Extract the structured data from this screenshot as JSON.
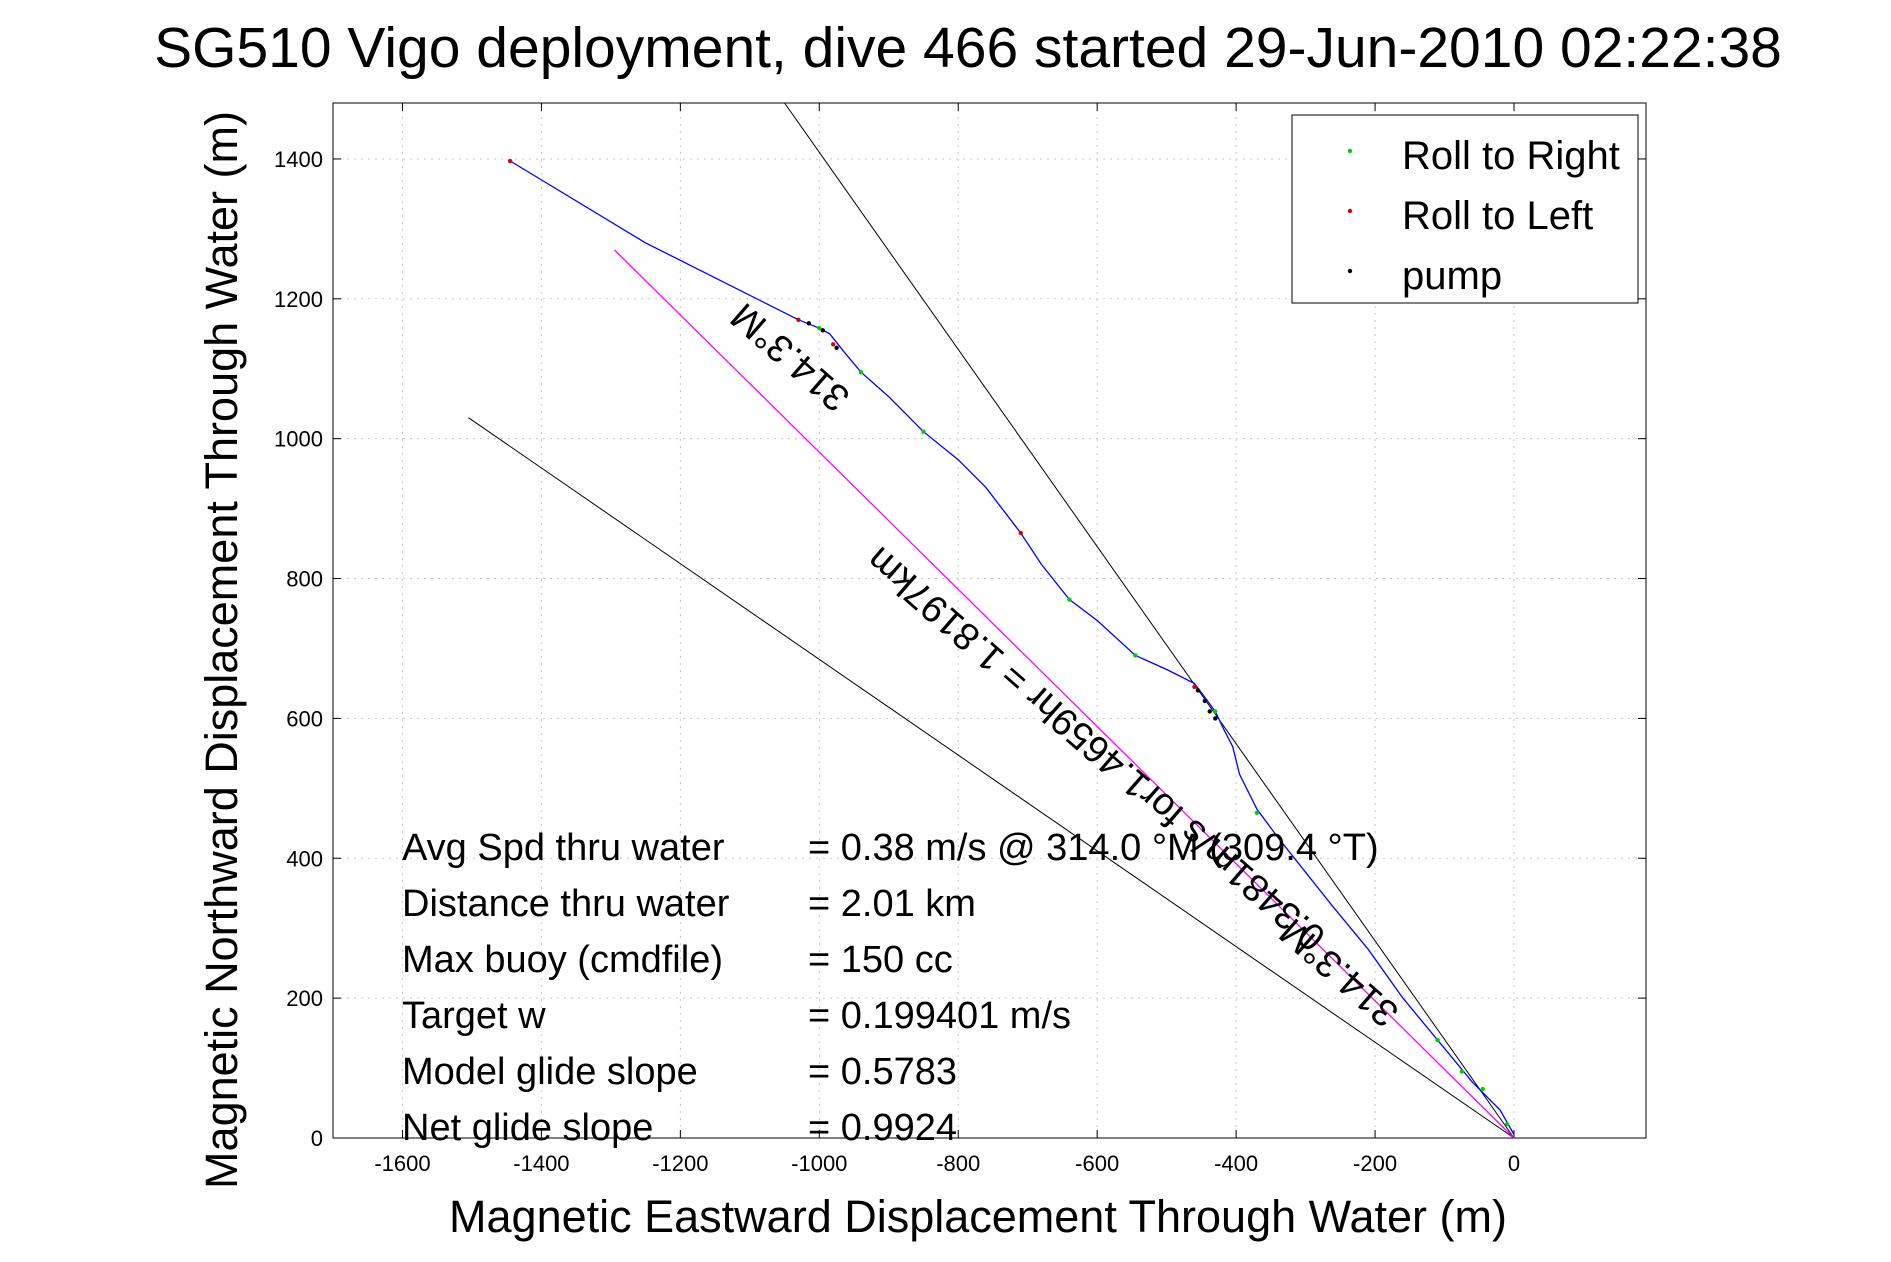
{
  "chart_data": {
    "type": "line",
    "title": "SG510 Vigo deployment, dive 466 started 29-Jun-2010 02:22:38",
    "xlabel": "Magnetic Eastward Displacement Through Water (m)",
    "ylabel": "Magnetic Northward Displacement Through Water (m)",
    "xlim": [
      -1700,
      190
    ],
    "ylim": [
      0,
      1480
    ],
    "xticks": [
      -1600,
      -1400,
      -1200,
      -1000,
      -800,
      -600,
      -400,
      -200,
      0
    ],
    "yticks": [
      0,
      200,
      400,
      600,
      800,
      1000,
      1200,
      1400
    ],
    "grid": true,
    "legend_position": "top-right",
    "legend": [
      {
        "label": "Roll to Right",
        "color": "#00cc00"
      },
      {
        "label": "Roll to Left",
        "color": "#dd0000"
      },
      {
        "label": "pump",
        "color": "#000000"
      }
    ],
    "series": [
      {
        "name": "track",
        "color": "#0000ff",
        "x": [
          0,
          -20,
          -60,
          -110,
          -160,
          -210,
          -260,
          -300,
          -340,
          -370,
          -395,
          -405,
          -418,
          -430,
          -445,
          -460,
          -500,
          -545,
          -600,
          -640,
          -680,
          -710,
          -760,
          -800,
          -850,
          -900,
          -940,
          -965,
          -985,
          -1000,
          -1030,
          -1250,
          -1445
        ],
        "y": [
          5,
          40,
          80,
          140,
          200,
          270,
          330,
          380,
          430,
          470,
          520,
          560,
          585,
          610,
          630,
          650,
          670,
          690,
          740,
          770,
          820,
          865,
          930,
          970,
          1010,
          1060,
          1095,
          1125,
          1150,
          1158,
          1170,
          1280,
          1397
        ]
      },
      {
        "name": "heading-line",
        "color": "#ff00ff",
        "x": [
          0,
          -1295
        ],
        "y": [
          0,
          1270
        ]
      }
    ],
    "reference_lines": [
      {
        "x": [
          0,
          -1050
        ],
        "y": [
          0,
          1480
        ]
      },
      {
        "x": [
          0,
          -1505
        ],
        "y": [
          0,
          1030
        ]
      }
    ],
    "markers": [
      {
        "type": "right",
        "x": -1000,
        "y": 1158
      },
      {
        "type": "right",
        "x": -940,
        "y": 1095
      },
      {
        "type": "right",
        "x": -850,
        "y": 1010
      },
      {
        "type": "right",
        "x": -640,
        "y": 770
      },
      {
        "type": "right",
        "x": -545,
        "y": 690
      },
      {
        "type": "right",
        "x": -430,
        "y": 610
      },
      {
        "type": "right",
        "x": -370,
        "y": 465
      },
      {
        "type": "right",
        "x": -110,
        "y": 140
      },
      {
        "type": "right",
        "x": -75,
        "y": 95
      },
      {
        "type": "right",
        "x": -45,
        "y": 70
      },
      {
        "type": "right",
        "x": -10,
        "y": 20
      },
      {
        "type": "left",
        "x": -1445,
        "y": 1397
      },
      {
        "type": "left",
        "x": -1030,
        "y": 1170
      },
      {
        "type": "left",
        "x": -980,
        "y": 1135
      },
      {
        "type": "left",
        "x": -710,
        "y": 865
      },
      {
        "type": "left",
        "x": -460,
        "y": 645
      },
      {
        "type": "pump",
        "x": -1015,
        "y": 1165
      },
      {
        "type": "pump",
        "x": -995,
        "y": 1155
      },
      {
        "type": "pump",
        "x": -975,
        "y": 1130
      },
      {
        "type": "pump",
        "x": -455,
        "y": 640
      },
      {
        "type": "pump",
        "x": -445,
        "y": 625
      },
      {
        "type": "pump",
        "x": -438,
        "y": 610
      },
      {
        "type": "pump",
        "x": -430,
        "y": 600
      }
    ],
    "annotations": [
      {
        "text": "314.3°M",
        "x": -1030,
        "y": 1130,
        "angle": 221
      },
      {
        "text": "0.3481m/s for1.4659hr = 1.8197km",
        "x": -590,
        "y": 570,
        "angle": 221
      },
      {
        "text": "314.3°M",
        "x": -240,
        "y": 250,
        "angle": 221
      }
    ],
    "stats": [
      {
        "label": "Avg Spd thru water",
        "value": "=  0.38 m/s @ 314.0 °M (309.4 °T)"
      },
      {
        "label": "Distance thru water",
        "value": "=  2.01 km"
      },
      {
        "label": "Max buoy (cmdfile)",
        "value": "= 150 cc"
      },
      {
        "label": "Target w",
        "value": "= 0.199401 m/s"
      },
      {
        "label": "Model glide slope",
        "value": "= 0.5783"
      },
      {
        "label": "Net glide slope",
        "value": "= 0.9924"
      }
    ]
  }
}
